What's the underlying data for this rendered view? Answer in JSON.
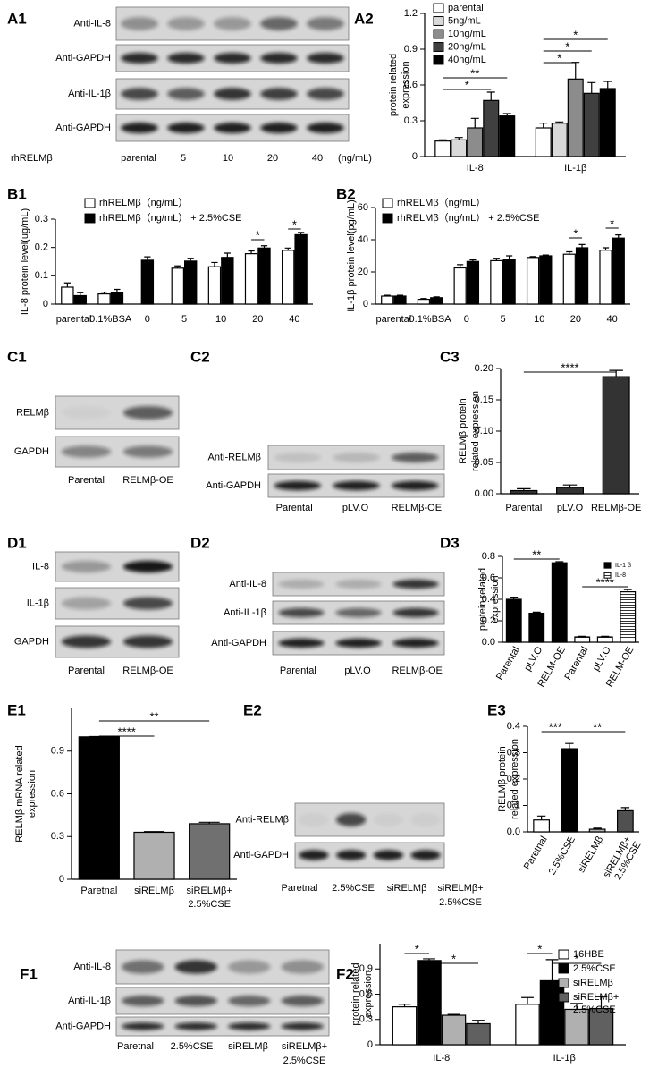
{
  "panel_labels": [
    "A1",
    "A2",
    "B1",
    "B2",
    "C1",
    "C2",
    "C3",
    "D1",
    "D2",
    "D3",
    "E1",
    "E2",
    "E3",
    "F1",
    "F2"
  ],
  "blots": [
    {
      "rows": [
        "Anti-IL-8",
        "Anti-GAPDH",
        "Anti-IL-1β",
        "Anti-GAPDH"
      ],
      "lane_title": "rhRELMβ",
      "lanes": [
        "parental",
        "5",
        "10",
        "20",
        "40"
      ],
      "lane_unit": "(ng/mL)"
    },
    {
      "rows": [
        "RELMβ",
        "GAPDH"
      ],
      "lanes": [
        "Parental",
        "RELMβ-OE"
      ]
    },
    {
      "rows": [
        "Anti-RELMβ",
        "Anti-GAPDH"
      ],
      "lanes": [
        "Parental",
        "pLV.O",
        "RELMβ-OE"
      ]
    },
    {
      "rows": [
        "IL-8",
        "IL-1β",
        "GAPDH"
      ],
      "lanes": [
        "Parental",
        "RELMβ-OE"
      ]
    },
    {
      "rows": [
        "Anti-IL-8",
        "Anti-IL-1β",
        "Anti-GAPDH"
      ],
      "lanes": [
        "Parental",
        "pLV.O",
        "RELMβ-OE"
      ]
    },
    {
      "rows": [
        "Anti-RELMβ",
        "Anti-GAPDH"
      ],
      "lanes": [
        "Paretnal",
        "2.5%CSE",
        "siRELMβ",
        [
          "siRELMβ+",
          "2.5%CSE"
        ]
      ]
    },
    {
      "rows": [
        "Anti-IL-8",
        "Anti-IL-1β",
        "Anti-GAPDH"
      ],
      "lanes": [
        "Paretnal",
        "2.5%CSE",
        "siRELMβ",
        [
          "siRELMβ+",
          "2.5%CSE"
        ]
      ]
    }
  ],
  "chart_data": [
    {
      "type": "bar",
      "y_label": [
        "protein related",
        "expression"
      ],
      "categories": [
        "IL-8",
        "IL-1β"
      ],
      "series": [
        {
          "name": "parental",
          "color": "#ffffff",
          "values": [
            0.13,
            0.24
          ],
          "errors": [
            0.01,
            0.04
          ]
        },
        {
          "name": "5ng/mL",
          "color": "#d9d9d9",
          "values": [
            0.14,
            0.28
          ],
          "errors": [
            0.02,
            0.01
          ]
        },
        {
          "name": "10ng/mL",
          "color": "#8c8c8c",
          "values": [
            0.24,
            0.65
          ],
          "errors": [
            0.08,
            0.14
          ]
        },
        {
          "name": "20ng/mL",
          "color": "#404040",
          "values": [
            0.47,
            0.53
          ],
          "errors": [
            0.07,
            0.09
          ]
        },
        {
          "name": "40ng/mL",
          "color": "#000000",
          "values": [
            0.34,
            0.57
          ],
          "errors": [
            0.02,
            0.06
          ]
        }
      ],
      "ylim": [
        0,
        1.2
      ],
      "yticks": [
        0,
        0.3,
        0.6,
        0.9,
        1.2
      ],
      "significance": [
        "**",
        "*",
        "*",
        "*",
        "*"
      ]
    },
    {
      "type": "bar",
      "y_label": "IL-8 protein level(ug/mL)",
      "categories": [
        "parental",
        "0.1%BSA",
        "0",
        "5",
        "10",
        "20",
        "40"
      ],
      "series": [
        {
          "name": "rhRELMβ（ng/mL）",
          "color": "#ffffff",
          "values": [
            0.06,
            0.036,
            null,
            0.127,
            0.132,
            0.178,
            0.19
          ],
          "errors": [
            0.015,
            0.006,
            null,
            0.008,
            0.015,
            0.01,
            0.008
          ]
        },
        {
          "name": "rhRELMβ（ng/mL） + 2.5%CSE",
          "color": "#000000",
          "values": [
            0.03,
            0.04,
            0.155,
            0.152,
            0.165,
            0.198,
            0.245
          ],
          "errors": [
            0.01,
            0.012,
            0.012,
            0.01,
            0.015,
            0.008,
            0.008
          ]
        }
      ],
      "ylim": [
        0,
        0.3
      ],
      "yticks": [
        0,
        0.1,
        0.2,
        0.3
      ],
      "significance": [
        "*",
        "*"
      ]
    },
    {
      "type": "bar",
      "y_label": "IL-1β protein level(pg/mL)",
      "categories": [
        "parental",
        "0.1%BSA",
        "0",
        "5",
        "10",
        "20",
        "40"
      ],
      "series": [
        {
          "name": "rhRELMβ（ng/mL）",
          "color": "#ffffff",
          "values": [
            5,
            3,
            22.5,
            27,
            29,
            31,
            33.5
          ],
          "errors": [
            0.5,
            0.5,
            2,
            1.5,
            0.5,
            1.5,
            1.5
          ]
        },
        {
          "name": "rhRELMβ（ng/mL） + 2.5%CSE",
          "color": "#000000",
          "values": [
            5,
            4,
            26.5,
            28,
            30,
            35,
            41
          ],
          "errors": [
            0.5,
            0.5,
            1,
            2,
            0.5,
            2,
            2
          ]
        }
      ],
      "ylim": [
        0,
        60
      ],
      "yticks": [
        0,
        20,
        40,
        60
      ],
      "significance": [
        "*",
        "*"
      ]
    },
    {
      "type": "bar",
      "y_label": [
        "RELMβ protein",
        "related expression"
      ],
      "categories": [
        "Parental",
        "pLV.O",
        "RELMβ-OE"
      ],
      "values": [
        0.005,
        0.01,
        0.187
      ],
      "errors": [
        0.003,
        0.004,
        0.01
      ],
      "colors": [
        "#333333",
        "#333333",
        "#333333"
      ],
      "ylim": [
        0,
        0.2
      ],
      "yticks": [
        {
          "value": 0,
          "label": "0.00"
        },
        0.05,
        {
          "value": 0.1,
          "label": "0.10"
        },
        0.15,
        {
          "value": 0.2,
          "label": "0.20"
        }
      ],
      "significance": [
        "****"
      ]
    },
    {
      "type": "bar",
      "y_label": [
        "protein related",
        "expression"
      ],
      "categories": [
        "Parental",
        "pLV.O",
        "RELM-OE",
        "Parental",
        "pLV.O",
        "RELM-OE"
      ],
      "series": [
        {
          "name": "IL-1 β",
          "color": "#000000",
          "values": [
            0.4,
            0.27,
            0.74,
            null,
            null,
            null
          ],
          "errors": [
            0.02,
            0.01,
            0.01,
            null,
            null,
            null
          ]
        },
        {
          "name": "IL-8",
          "color": "#ffffff",
          "hatch": true,
          "values": [
            null,
            null,
            null,
            0.05,
            0.05,
            0.47
          ],
          "errors": [
            null,
            null,
            null,
            0.005,
            0.005,
            0.02
          ]
        }
      ],
      "ylim": [
        0,
        0.8
      ],
      "yticks": [
        {
          "value": 0,
          "label": "0.0"
        },
        0.2,
        0.4,
        0.6,
        0.8
      ],
      "significance": [
        "**",
        "****"
      ]
    },
    {
      "type": "bar",
      "y_label": [
        "RELMβ mRNA related",
        "expression"
      ],
      "categories": [
        "Paretnal",
        "siRELMβ",
        [
          "siRELMβ+",
          "2.5%CSE"
        ]
      ],
      "values": [
        1.0,
        0.33,
        0.39
      ],
      "errors": [
        0.002,
        0.005,
        0.01
      ],
      "colors": [
        "#000000",
        "#b0b0b0",
        "#707070"
      ],
      "ylim": [
        0,
        1.2
      ],
      "yticks": [
        0,
        0.3,
        0.6,
        0.9
      ],
      "significance": [
        "****",
        "**"
      ]
    },
    {
      "type": "bar",
      "y_label": [
        "RELMβ protein",
        "related expression"
      ],
      "categories": [
        "Paretnal",
        "2.5%CSE",
        "siRELMβ",
        [
          "siRELMβ+",
          "2.5%CSE"
        ]
      ],
      "values": [
        0.045,
        0.315,
        0.01,
        0.08
      ],
      "errors": [
        0.015,
        0.02,
        0.004,
        0.012
      ],
      "colors": [
        "#ffffff",
        "#000000",
        "#b0b0b0",
        "#505050"
      ],
      "ylim": [
        0,
        0.4
      ],
      "yticks": [
        {
          "value": 0,
          "label": "0.0"
        },
        0.1,
        0.2,
        0.3,
        0.4
      ],
      "significance": [
        "***",
        "**"
      ]
    },
    {
      "type": "bar",
      "y_label": [
        "protein related",
        "expression"
      ],
      "categories": [
        "IL-8",
        "IL-1β"
      ],
      "series": [
        {
          "name": "16HBE",
          "color": "#ffffff",
          "values": [
            0.45,
            0.48
          ],
          "errors": [
            0.03,
            0.08
          ]
        },
        {
          "name": "2.5%CSE",
          "color": "#000000",
          "values": [
            1.0,
            0.76
          ],
          "errors": [
            0.02,
            0.25
          ]
        },
        {
          "name": "siRELMβ",
          "color": "#b0b0b0",
          "values": [
            0.35,
            0.42
          ],
          "errors": [
            0.01,
            0.07
          ]
        },
        {
          "name": [
            "siRELMβ+",
            "2.5%CSE"
          ],
          "color": "#606060",
          "values": [
            0.25,
            0.43
          ],
          "errors": [
            0.04,
            0.14
          ]
        }
      ],
      "ylim": [
        0,
        1.2
      ],
      "yticks": [
        0,
        0.3,
        0.6,
        0.9
      ],
      "significance": [
        "*",
        "*",
        "*",
        "*"
      ]
    }
  ]
}
